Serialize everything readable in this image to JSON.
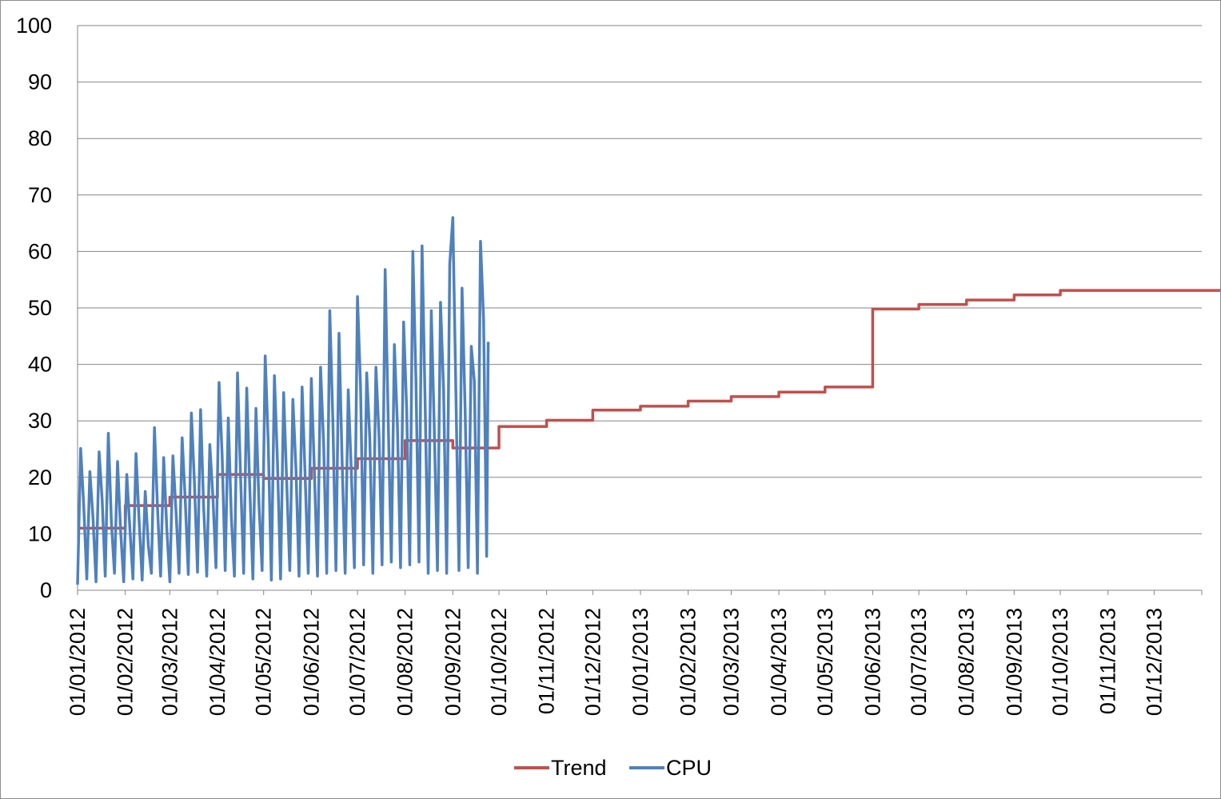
{
  "chart_data": {
    "type": "line",
    "y_ticks": [
      "0",
      "10",
      "20",
      "30",
      "40",
      "50",
      "60",
      "70",
      "80",
      "90",
      "100"
    ],
    "ylim": [
      0,
      100
    ],
    "x_ticks": [
      "01/01/2012",
      "01/02/2012",
      "01/03/2012",
      "01/04/2012",
      "01/05/2012",
      "01/06/2012",
      "01/07/2012",
      "01/08/2012",
      "01/09/2012",
      "01/10/2012",
      "01/11/2012",
      "01/12/2012",
      "01/01/2013",
      "01/02/2013",
      "01/03/2013",
      "01/04/2013",
      "01/05/2013",
      "01/06/2013",
      "01/07/2013",
      "01/08/2013",
      "01/09/2013",
      "01/10/2013",
      "01/11/2013",
      "01/12/2013"
    ],
    "x_range": [
      "2012-01-01",
      "2014-01-01"
    ],
    "grid": "horizontal",
    "legend_position": "bottom",
    "series": [
      {
        "name": "Trend",
        "color": "#c0504d",
        "style": "step",
        "points": [
          [
            "2012-01-01",
            11.0
          ],
          [
            "2012-02-01",
            15.0
          ],
          [
            "2012-03-01",
            16.5
          ],
          [
            "2012-04-01",
            20.5
          ],
          [
            "2012-05-01",
            19.8
          ],
          [
            "2012-06-01",
            21.6
          ],
          [
            "2012-07-01",
            23.3
          ],
          [
            "2012-08-01",
            26.5
          ],
          [
            "2012-09-01",
            25.2
          ],
          [
            "2012-10-01",
            29.0
          ],
          [
            "2012-11-01",
            30.1
          ],
          [
            "2012-12-01",
            31.9
          ],
          [
            "2013-01-01",
            32.6
          ],
          [
            "2013-02-01",
            33.5
          ],
          [
            "2013-03-01",
            34.3
          ],
          [
            "2013-04-01",
            35.1
          ],
          [
            "2013-05-01",
            36.0
          ],
          [
            "2013-06-01",
            49.8
          ],
          [
            "2013-07-01",
            50.6
          ],
          [
            "2013-08-01",
            51.4
          ],
          [
            "2013-09-01",
            52.3
          ],
          [
            "2013-10-01",
            53.1
          ],
          [
            "2014-01-01",
            53.1
          ]
        ]
      },
      {
        "name": "CPU",
        "color": "#4f81bd",
        "style": "line",
        "points": [
          [
            "2012-01-01",
            1.0
          ],
          [
            "2012-01-03",
            25.1
          ],
          [
            "2012-01-05",
            15.0
          ],
          [
            "2012-01-07",
            2.0
          ],
          [
            "2012-01-09",
            21.0
          ],
          [
            "2012-01-11",
            13.0
          ],
          [
            "2012-01-13",
            1.5
          ],
          [
            "2012-01-15",
            24.5
          ],
          [
            "2012-01-17",
            16.0
          ],
          [
            "2012-01-19",
            2.5
          ],
          [
            "2012-01-21",
            27.8
          ],
          [
            "2012-01-23",
            12.0
          ],
          [
            "2012-01-25",
            3.0
          ],
          [
            "2012-01-27",
            22.8
          ],
          [
            "2012-01-29",
            10.5
          ],
          [
            "2012-01-31",
            1.5
          ],
          [
            "2012-02-02",
            20.5
          ],
          [
            "2012-02-04",
            11.0
          ],
          [
            "2012-02-06",
            2.0
          ],
          [
            "2012-02-08",
            24.2
          ],
          [
            "2012-02-10",
            12.5
          ],
          [
            "2012-02-12",
            1.8
          ],
          [
            "2012-02-14",
            17.5
          ],
          [
            "2012-02-16",
            8.0
          ],
          [
            "2012-02-18",
            3.0
          ],
          [
            "2012-02-20",
            28.8
          ],
          [
            "2012-02-22",
            14.5
          ],
          [
            "2012-02-24",
            2.5
          ],
          [
            "2012-02-26",
            23.5
          ],
          [
            "2012-02-28",
            11.0
          ],
          [
            "2012-03-01",
            1.5
          ],
          [
            "2012-03-03",
            23.8
          ],
          [
            "2012-03-05",
            14.0
          ],
          [
            "2012-03-07",
            3.0
          ],
          [
            "2012-03-09",
            27.0
          ],
          [
            "2012-03-11",
            16.0
          ],
          [
            "2012-03-13",
            2.8
          ],
          [
            "2012-03-15",
            31.4
          ],
          [
            "2012-03-17",
            19.0
          ],
          [
            "2012-03-19",
            3.2
          ],
          [
            "2012-03-21",
            32.0
          ],
          [
            "2012-03-23",
            14.5
          ],
          [
            "2012-03-25",
            2.5
          ],
          [
            "2012-03-27",
            25.8
          ],
          [
            "2012-03-29",
            16.5
          ],
          [
            "2012-03-31",
            4.0
          ],
          [
            "2012-04-02",
            36.8
          ],
          [
            "2012-04-04",
            24.0
          ],
          [
            "2012-04-06",
            3.5
          ],
          [
            "2012-04-08",
            30.5
          ],
          [
            "2012-04-10",
            12.8
          ],
          [
            "2012-04-12",
            2.5
          ],
          [
            "2012-04-14",
            38.5
          ],
          [
            "2012-04-16",
            20.0
          ],
          [
            "2012-04-18",
            3.0
          ],
          [
            "2012-04-20",
            35.8
          ],
          [
            "2012-04-22",
            18.0
          ],
          [
            "2012-04-24",
            2.0
          ],
          [
            "2012-04-26",
            32.2
          ],
          [
            "2012-04-28",
            15.0
          ],
          [
            "2012-04-30",
            3.5
          ],
          [
            "2012-05-02",
            41.5
          ],
          [
            "2012-05-04",
            26.0
          ],
          [
            "2012-05-06",
            1.8
          ],
          [
            "2012-05-08",
            38.0
          ],
          [
            "2012-05-10",
            22.5
          ],
          [
            "2012-05-12",
            2.0
          ],
          [
            "2012-05-14",
            35.0
          ],
          [
            "2012-05-16",
            19.0
          ],
          [
            "2012-05-18",
            3.5
          ],
          [
            "2012-05-20",
            33.8
          ],
          [
            "2012-05-22",
            21.5
          ],
          [
            "2012-05-24",
            2.5
          ],
          [
            "2012-05-26",
            36.0
          ],
          [
            "2012-05-28",
            20.0
          ],
          [
            "2012-05-30",
            3.0
          ],
          [
            "2012-06-01",
            37.5
          ],
          [
            "2012-06-03",
            21.0
          ],
          [
            "2012-06-05",
            2.5
          ],
          [
            "2012-06-07",
            39.5
          ],
          [
            "2012-06-09",
            26.0
          ],
          [
            "2012-06-11",
            3.0
          ],
          [
            "2012-06-13",
            49.5
          ],
          [
            "2012-06-15",
            30.0
          ],
          [
            "2012-06-17",
            3.5
          ],
          [
            "2012-06-19",
            45.5
          ],
          [
            "2012-06-21",
            23.0
          ],
          [
            "2012-06-23",
            3.0
          ],
          [
            "2012-06-25",
            35.5
          ],
          [
            "2012-06-27",
            21.0
          ],
          [
            "2012-06-29",
            4.0
          ],
          [
            "2012-07-01",
            52.0
          ],
          [
            "2012-07-03",
            36.0
          ],
          [
            "2012-07-05",
            4.5
          ],
          [
            "2012-07-07",
            38.5
          ],
          [
            "2012-07-09",
            27.0
          ],
          [
            "2012-07-11",
            3.0
          ],
          [
            "2012-07-13",
            39.5
          ],
          [
            "2012-07-15",
            27.5
          ],
          [
            "2012-07-17",
            4.5
          ],
          [
            "2012-07-19",
            56.8
          ],
          [
            "2012-07-21",
            30.0
          ],
          [
            "2012-07-23",
            5.0
          ],
          [
            "2012-07-25",
            43.5
          ],
          [
            "2012-07-27",
            29.0
          ],
          [
            "2012-07-29",
            4.0
          ],
          [
            "2012-07-31",
            47.5
          ],
          [
            "2012-08-02",
            32.0
          ],
          [
            "2012-08-04",
            4.5
          ],
          [
            "2012-08-06",
            60.0
          ],
          [
            "2012-08-08",
            37.5
          ],
          [
            "2012-08-10",
            5.0
          ],
          [
            "2012-08-12",
            61.0
          ],
          [
            "2012-08-14",
            33.0
          ],
          [
            "2012-08-16",
            3.0
          ],
          [
            "2012-08-18",
            49.5
          ],
          [
            "2012-08-20",
            28.0
          ],
          [
            "2012-08-22",
            3.5
          ],
          [
            "2012-08-24",
            51.0
          ],
          [
            "2012-08-26",
            35.5
          ],
          [
            "2012-08-28",
            3.0
          ],
          [
            "2012-08-30",
            57.8
          ],
          [
            "2012-09-01",
            66.0
          ],
          [
            "2012-09-03",
            35.0
          ],
          [
            "2012-09-05",
            3.5
          ],
          [
            "2012-09-07",
            53.5
          ],
          [
            "2012-09-09",
            32.0
          ],
          [
            "2012-09-11",
            4.0
          ],
          [
            "2012-09-13",
            43.2
          ],
          [
            "2012-09-15",
            37.0
          ],
          [
            "2012-09-17",
            3.0
          ],
          [
            "2012-09-19",
            61.8
          ],
          [
            "2012-09-21",
            48.0
          ],
          [
            "2012-09-23",
            6.0
          ],
          [
            "2012-09-24",
            44.0
          ]
        ]
      }
    ]
  }
}
